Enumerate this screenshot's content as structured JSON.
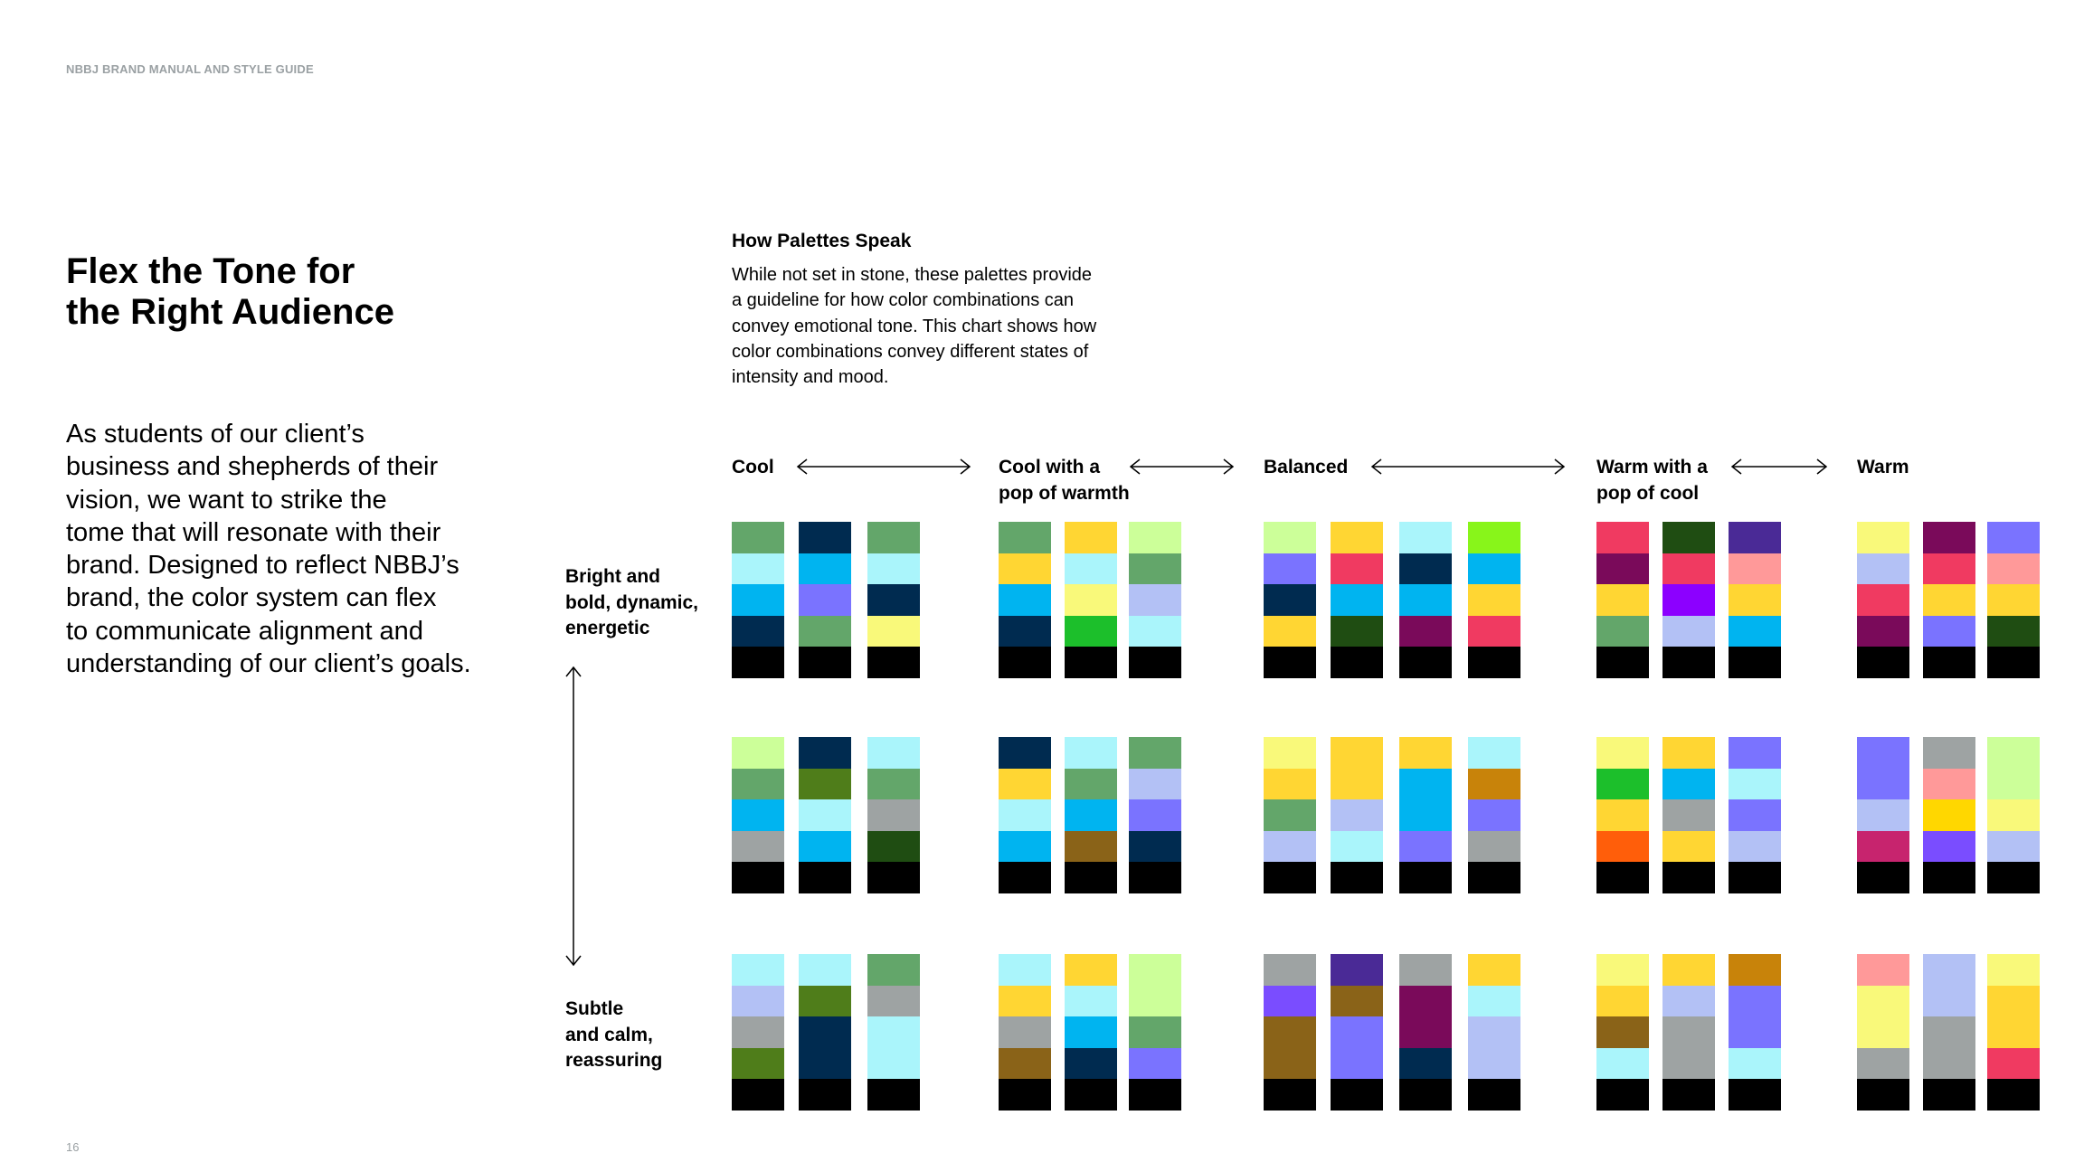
{
  "header": "NBBJ BRAND MANUAL AND STYLE GUIDE",
  "title": [
    "Flex the Tone for",
    "the Right Audience"
  ],
  "body": [
    "As students of our client’s",
    "business and shepherds of their",
    "vision, we want to strike the",
    "tome that will resonate with their",
    "brand. Designed to reflect NBBJ’s",
    "brand, the color system can flex",
    "to communicate alignment and",
    "understanding of our client’s goals."
  ],
  "section_title": "How Palettes Speak",
  "description": [
    "While not set in stone, these palettes provide",
    "a guideline for how color combinations can",
    "convey emotional tone. This chart shows how",
    "color combinations convey different states of",
    "intensity and mood."
  ],
  "row_labels": [
    [
      "Bright and",
      "bold, dynamic,",
      "energetic"
    ],
    [
      "Subtle",
      "and calm,",
      "reassuring"
    ]
  ],
  "page_number": "16",
  "groups": [
    {
      "label": [
        "Cool"
      ],
      "rows": [
        [
          [
            "#63a66a",
            "#aaf5fb",
            "#00b4f0",
            "#002b50",
            "#000000"
          ],
          [
            "#002b50",
            "#00b4f0",
            "#7a73ff",
            "#63a66a",
            "#000000"
          ],
          [
            "#63a66a",
            "#aaf5fb",
            "#002b50",
            "#f9f97a",
            "#000000"
          ]
        ],
        [
          [
            "#ccff99",
            "#63a66a",
            "#00b4f0",
            "#9ea3a3",
            "#000000"
          ],
          [
            "#002b50",
            "#4f7d1a",
            "#aaf5fb",
            "#00b4f0",
            "#000000"
          ],
          [
            "#aaf5fb",
            "#63a66a",
            "#9ea3a3",
            "#1f4d12",
            "#000000"
          ]
        ],
        [
          [
            "#aaf5fb",
            "#b3c1f5",
            "#9ea3a3",
            "#4f7d1a",
            "#000000"
          ],
          [
            "#aaf5fb",
            "#4f7d1a",
            "#002b50",
            "#002b50",
            "#000000"
          ],
          [
            "#63a66a",
            "#9ea3a3",
            "#aaf5fb",
            "#aaf5fb",
            "#000000"
          ]
        ]
      ]
    },
    {
      "label": [
        "Cool with a",
        "pop of warmth"
      ],
      "rows": [
        [
          [
            "#63a66a",
            "#ffd633",
            "#00b4f0",
            "#002b50",
            "#000000"
          ],
          [
            "#ffd633",
            "#aaf5fb",
            "#f9f97a",
            "#1cbf2b",
            "#000000"
          ],
          [
            "#ccff99",
            "#63a66a",
            "#b3c1f5",
            "#aaf5fb",
            "#000000"
          ]
        ],
        [
          [
            "#002b50",
            "#ffd633",
            "#aaf5fb",
            "#00b4f0",
            "#000000"
          ],
          [
            "#aaf5fb",
            "#63a66a",
            "#00b4f0",
            "#8a6318",
            "#000000"
          ],
          [
            "#63a66a",
            "#b3c1f5",
            "#7a73ff",
            "#002b50",
            "#000000"
          ]
        ],
        [
          [
            "#aaf5fb",
            "#ffd633",
            "#9ea3a3",
            "#8a6318",
            "#000000"
          ],
          [
            "#ffd633",
            "#aaf5fb",
            "#00b4f0",
            "#002b50",
            "#000000"
          ],
          [
            "#ccff99",
            "#ccff99",
            "#63a66a",
            "#7a73ff",
            "#000000"
          ]
        ]
      ]
    },
    {
      "label": [
        "Balanced"
      ],
      "rows": [
        [
          [
            "#ccff99",
            "#7a73ff",
            "#002b50",
            "#ffd633",
            "#000000"
          ],
          [
            "#ffd633",
            "#f03a61",
            "#00b4f0",
            "#1f4d12",
            "#000000"
          ],
          [
            "#aaf5fb",
            "#002b50",
            "#00b4f0",
            "#7a0a5a",
            "#000000"
          ],
          [
            "#88f51a",
            "#00b4f0",
            "#ffd633",
            "#f03a61",
            "#000000"
          ]
        ],
        [
          [
            "#f9f97a",
            "#ffd633",
            "#63a66a",
            "#b3c1f5",
            "#000000"
          ],
          [
            "#ffd633",
            "#ffd633",
            "#b3c1f5",
            "#aaf5fb",
            "#000000"
          ],
          [
            "#ffd633",
            "#00b4f0",
            "#00b4f0",
            "#7a73ff",
            "#000000"
          ],
          [
            "#aaf5fb",
            "#c8830a",
            "#7a73ff",
            "#9ea3a3",
            "#000000"
          ]
        ],
        [
          [
            "#9ea3a3",
            "#7a4dff",
            "#8a6318",
            "#8a6318",
            "#000000"
          ],
          [
            "#4a2a96",
            "#8a6318",
            "#7a73ff",
            "#7a73ff",
            "#000000"
          ],
          [
            "#9ea3a3",
            "#7a0a5a",
            "#7a0a5a",
            "#002b50",
            "#000000"
          ],
          [
            "#ffd633",
            "#aaf5fb",
            "#b3c1f5",
            "#b3c1f5",
            "#000000"
          ]
        ]
      ]
    },
    {
      "label": [
        "Warm with a",
        "pop of cool"
      ],
      "rows": [
        [
          [
            "#f03a61",
            "#7a0a5a",
            "#ffd633",
            "#63a66a",
            "#000000"
          ],
          [
            "#1f4d12",
            "#f03a61",
            "#8c00ff",
            "#b3c1f5",
            "#000000"
          ],
          [
            "#4a2a96",
            "#ff9999",
            "#ffd633",
            "#00b4f0",
            "#000000"
          ]
        ],
        [
          [
            "#f9f97a",
            "#1cbf2b",
            "#ffd633",
            "#ff5e0a",
            "#000000"
          ],
          [
            "#ffd633",
            "#00b4f0",
            "#9ea3a3",
            "#ffd633",
            "#000000"
          ],
          [
            "#7a73ff",
            "#aaf5fb",
            "#7a73ff",
            "#b3c1f5",
            "#000000"
          ]
        ],
        [
          [
            "#f9f97a",
            "#ffd633",
            "#8a6318",
            "#aaf5fb",
            "#000000"
          ],
          [
            "#ffd633",
            "#b3c1f5",
            "#9ea3a3",
            "#9ea3a3",
            "#000000"
          ],
          [
            "#c8830a",
            "#7a73ff",
            "#7a73ff",
            "#aaf5fb",
            "#000000"
          ]
        ]
      ]
    },
    {
      "label": [
        "Warm"
      ],
      "rows": [
        [
          [
            "#f9f97a",
            "#b3c1f5",
            "#f03a61",
            "#7a0a5a",
            "#000000"
          ],
          [
            "#7a0a5a",
            "#f03a61",
            "#ffd633",
            "#7a73ff",
            "#000000"
          ],
          [
            "#7a73ff",
            "#ff9999",
            "#ffd633",
            "#1f4d12",
            "#000000"
          ]
        ],
        [
          [
            "#7a73ff",
            "#7a73ff",
            "#b3c1f5",
            "#c7246e",
            "#000000"
          ],
          [
            "#9ea3a3",
            "#ff9999",
            "#ffd700",
            "#7a4dff",
            "#000000"
          ],
          [
            "#ccff99",
            "#ccff99",
            "#f9f97a",
            "#b3c1f5",
            "#000000"
          ]
        ],
        [
          [
            "#ff9999",
            "#f9f97a",
            "#f9f97a",
            "#9ea3a3",
            "#000000"
          ],
          [
            "#b3c1f5",
            "#b3c1f5",
            "#9ea3a3",
            "#9ea3a3",
            "#000000"
          ],
          [
            "#f9f97a",
            "#ffd633",
            "#ffd633",
            "#f03a61",
            "#000000"
          ]
        ]
      ]
    }
  ]
}
